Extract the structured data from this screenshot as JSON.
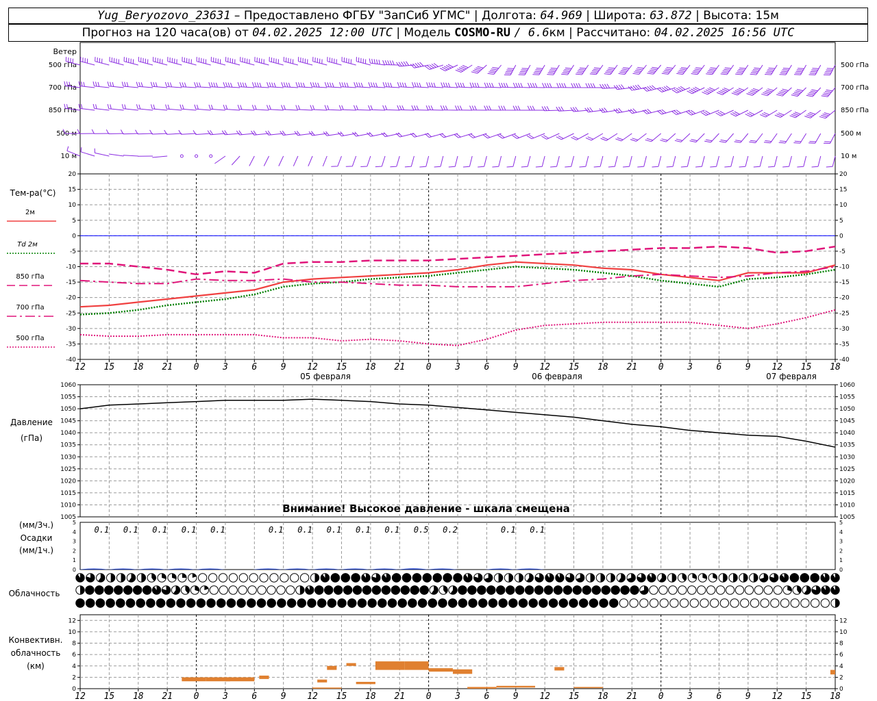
{
  "header": {
    "station": "Yug_Beryozovo_23631",
    "dash": "–",
    "provider": "Предоставлено ФГБУ \"ЗапСиб УГМС\"",
    "lon_label": "Долгота:",
    "lon": "64.969",
    "lat_label": "Широта:",
    "lat": "63.872",
    "alt_label": "Высота:",
    "alt": "15м",
    "forecast_label": "Прогноз на 120 часа(ов) от",
    "forecast_from": "04.02.2025 12:00 UTC",
    "model_label": "Модель",
    "model": "COSMO-RU",
    "resolution": "/ 6.6",
    "resolution_unit": "км",
    "calc_label": "Рассчитано:",
    "calc_time": "04.02.2025 16:56 UTC",
    "sep": "|"
  },
  "colors": {
    "wind": "#8a2be2",
    "t2m": "#f04040",
    "td": "#008000",
    "t850": "#e0157a",
    "t700": "#e0157a",
    "t500": "#e0157a",
    "zero_line": "#0000ff",
    "pressure": "#000000",
    "precip": "#2040c0",
    "convective": "#e08030",
    "grid": "#999999"
  },
  "axis": {
    "hour_ticks": [
      "12",
      "15",
      "18",
      "21",
      "0",
      "3",
      "6",
      "9",
      "12",
      "15",
      "18",
      "21",
      "0",
      "3",
      "6",
      "9",
      "12",
      "15",
      "18",
      "21",
      "0",
      "3",
      "6",
      "9",
      "12",
      "15",
      "18"
    ],
    "dates": [
      "05 февраля",
      "06 февраля",
      "07 февраля"
    ]
  },
  "wind_panel": {
    "title": "Ветер",
    "levels": [
      "500 гПа",
      "700 гПа",
      "850 гПа",
      "500 м",
      "10  м"
    ]
  },
  "temp_panel": {
    "title": "Тем-ра(°C)",
    "legend": [
      {
        "label": "2м",
        "style": "solid",
        "color_key": "t2m"
      },
      {
        "label": "Td  2м",
        "style": "dotted",
        "color_key": "td"
      },
      {
        "label": "850 гПа",
        "style": "dash",
        "color_key": "t850"
      },
      {
        "label": "700 гПа",
        "style": "dashdot",
        "color_key": "t700"
      },
      {
        "label": "500 гПа",
        "style": "dotted",
        "color_key": "t500"
      }
    ]
  },
  "pressure_panel": {
    "title": "Давление",
    "unit": "(гПа)",
    "warning": "Внимание! Высокое давление - шкала смещена"
  },
  "precip_panel": {
    "unit_3h": "(мм/3ч.)",
    "title": "Осадки",
    "unit_1h": "(мм/1ч.)",
    "labels": [
      {
        "hour": 3,
        "text": "0.1"
      },
      {
        "hour": 6,
        "text": "0.1"
      },
      {
        "hour": 9,
        "text": "0.1"
      },
      {
        "hour": 12,
        "text": "0.1"
      },
      {
        "hour": 15,
        "text": "0.1"
      },
      {
        "hour": 21,
        "text": "0.1"
      },
      {
        "hour": 24,
        "text": "0.1"
      },
      {
        "hour": 27,
        "text": "0.1"
      },
      {
        "hour": 30,
        "text": "0.1"
      },
      {
        "hour": 33,
        "text": "0.1"
      },
      {
        "hour": 36,
        "text": "0.5"
      },
      {
        "hour": 39,
        "text": "0.2"
      },
      {
        "hour": 45,
        "text": "0.1"
      },
      {
        "hour": 48,
        "text": "0.1"
      }
    ]
  },
  "cloud_panel": {
    "title": "Облачность"
  },
  "conv_panel": {
    "line1": "Конвективн.",
    "line2": "облачность",
    "unit": "(км)"
  },
  "chart_data": [
    {
      "type": "line",
      "name": "temperature",
      "x_unit": "hours from 04.02.2025 12:00 UTC",
      "xlim": [
        0,
        78
      ],
      "ylim": [
        -40,
        20
      ],
      "yticks": [
        -40,
        -35,
        -30,
        -25,
        -20,
        -15,
        -10,
        -5,
        0,
        5,
        10,
        15,
        20
      ],
      "grid": true,
      "series": [
        {
          "name": "2м",
          "x": [
            0,
            3,
            6,
            9,
            12,
            15,
            18,
            21,
            24,
            27,
            30,
            33,
            36,
            39,
            42,
            45,
            48,
            51,
            54,
            57,
            60,
            63,
            66,
            69,
            72,
            75,
            78
          ],
          "values": [
            -23,
            -22.5,
            -21.5,
            -20.5,
            -19.5,
            -18.5,
            -17.5,
            -15,
            -14,
            -13.5,
            -13,
            -12.5,
            -12,
            -11,
            -9.5,
            -8.5,
            -9,
            -9.5,
            -10.5,
            -11,
            -12.5,
            -13.5,
            -14.5,
            -12,
            -12,
            -12,
            -9.5
          ]
        },
        {
          "name": "Td  2м",
          "x": [
            0,
            3,
            6,
            9,
            12,
            15,
            18,
            21,
            24,
            27,
            30,
            33,
            36,
            39,
            42,
            45,
            48,
            51,
            54,
            57,
            60,
            63,
            66,
            69,
            72,
            75,
            78
          ],
          "values": [
            -25.5,
            -25,
            -24,
            -22.5,
            -21.5,
            -20.5,
            -19,
            -16.5,
            -15.5,
            -15,
            -14,
            -13.5,
            -13,
            -12,
            -11,
            -10,
            -10.5,
            -11,
            -12,
            -13,
            -14.5,
            -15.5,
            -16.5,
            -14,
            -13.5,
            -12.5,
            -11
          ]
        },
        {
          "name": "850 гПа",
          "x": [
            0,
            3,
            6,
            9,
            12,
            15,
            18,
            21,
            24,
            27,
            30,
            33,
            36,
            39,
            42,
            45,
            48,
            51,
            54,
            57,
            60,
            63,
            66,
            69,
            72,
            75,
            78
          ],
          "values": [
            -9,
            -9,
            -10,
            -11,
            -12.5,
            -11.5,
            -12,
            -9,
            -8.5,
            -8.5,
            -8,
            -8,
            -8,
            -7.5,
            -7,
            -6.5,
            -6,
            -5.5,
            -5,
            -4.5,
            -4,
            -4,
            -3.5,
            -4,
            -5.5,
            -5,
            -3.5
          ]
        },
        {
          "name": "700 гПа",
          "x": [
            0,
            3,
            6,
            9,
            12,
            15,
            18,
            21,
            24,
            27,
            30,
            33,
            36,
            39,
            42,
            45,
            48,
            51,
            54,
            57,
            60,
            63,
            66,
            69,
            72,
            75,
            78
          ],
          "values": [
            -14.5,
            -15,
            -15.5,
            -15.5,
            -14,
            -14.5,
            -14.5,
            -14,
            -15,
            -15,
            -15.5,
            -16,
            -16,
            -16.5,
            -16.5,
            -16.5,
            -15.5,
            -14.5,
            -14,
            -13,
            -12.5,
            -13,
            -13.5,
            -13,
            -12,
            -11.5,
            -10
          ]
        },
        {
          "name": "500 гПа",
          "x": [
            0,
            3,
            6,
            9,
            12,
            15,
            18,
            21,
            24,
            27,
            30,
            33,
            36,
            39,
            42,
            45,
            48,
            51,
            54,
            57,
            60,
            63,
            66,
            69,
            72,
            75,
            78
          ],
          "values": [
            -32,
            -32.5,
            -32.5,
            -32,
            -32,
            -32,
            -32,
            -33,
            -33,
            -34,
            -33.5,
            -34,
            -35,
            -35.5,
            -33.5,
            -30.5,
            -29,
            -28.5,
            -28,
            -28,
            -28,
            -28,
            -29,
            -30,
            -28.5,
            -26.5,
            -24
          ]
        }
      ]
    },
    {
      "type": "line",
      "name": "pressure",
      "x_unit": "hours from 04.02.2025 12:00 UTC",
      "xlim": [
        0,
        78
      ],
      "ylim": [
        1005,
        1060
      ],
      "yticks": [
        1005,
        1010,
        1015,
        1020,
        1025,
        1030,
        1035,
        1040,
        1045,
        1050,
        1055,
        1060
      ],
      "grid": true,
      "series": [
        {
          "name": "pressure",
          "x": [
            0,
            3,
            6,
            9,
            12,
            15,
            18,
            21,
            24,
            27,
            30,
            33,
            36,
            39,
            42,
            45,
            48,
            51,
            54,
            57,
            60,
            63,
            66,
            69,
            72,
            75,
            78
          ],
          "values": [
            1050,
            1051.5,
            1052,
            1052.5,
            1053,
            1053.5,
            1053.5,
            1053.5,
            1054,
            1053.5,
            1053,
            1052,
            1051.5,
            1050.5,
            1049.5,
            1048.5,
            1047.5,
            1046.5,
            1045,
            1043.5,
            1042.5,
            1041,
            1040,
            1039,
            1038.5,
            1036.5,
            1034
          ]
        }
      ]
    },
    {
      "type": "bar",
      "name": "precipitation",
      "x_unit": "hours from 04.02.2025 12:00 UTC",
      "ylim": [
        0,
        5
      ],
      "yticks": [
        0,
        1,
        2,
        3,
        4,
        5
      ],
      "x": [
        3,
        6,
        9,
        12,
        15,
        21,
        24,
        27,
        30,
        33,
        36,
        39,
        45,
        48
      ],
      "values": [
        0.1,
        0.1,
        0.1,
        0.1,
        0.1,
        0.1,
        0.1,
        0.1,
        0.1,
        0.1,
        0.5,
        0.2,
        0.1,
        0.1
      ]
    },
    {
      "type": "bar",
      "name": "convective cloud",
      "x_unit": "hours from 04.02.2025 12:00 UTC",
      "ylim": [
        0,
        13
      ],
      "yticks": [
        0,
        2,
        4,
        6,
        8,
        10,
        12
      ],
      "segments": [
        {
          "x0": 10.5,
          "x1": 13,
          "base": 1.3,
          "top": 2
        },
        {
          "x0": 13,
          "x1": 15.5,
          "base": 1.3,
          "top": 2
        },
        {
          "x0": 15,
          "x1": 18,
          "base": 1.3,
          "top": 2
        },
        {
          "x0": 18.5,
          "x1": 19.5,
          "base": 1.7,
          "top": 2.3
        },
        {
          "x0": 24,
          "x1": 27,
          "base": 0,
          "top": 0.2
        },
        {
          "x0": 24.5,
          "x1": 25.5,
          "base": 1.1,
          "top": 1.6
        },
        {
          "x0": 25.5,
          "x1": 26.5,
          "base": 3.3,
          "top": 4
        },
        {
          "x0": 27.5,
          "x1": 28.5,
          "base": 4,
          "top": 4.5
        },
        {
          "x0": 28.5,
          "x1": 30.5,
          "base": 0.8,
          "top": 1.2
        },
        {
          "x0": 30.5,
          "x1": 33.5,
          "base": 3.3,
          "top": 4.8
        },
        {
          "x0": 33.5,
          "x1": 36,
          "base": 3.3,
          "top": 4.8
        },
        {
          "x0": 36,
          "x1": 38.5,
          "base": 3,
          "top": 3.6
        },
        {
          "x0": 38.5,
          "x1": 40.5,
          "base": 2.6,
          "top": 3.4
        },
        {
          "x0": 40,
          "x1": 43,
          "base": 0,
          "top": 0.3
        },
        {
          "x0": 43,
          "x1": 47,
          "base": 0.2,
          "top": 0.5
        },
        {
          "x0": 49,
          "x1": 50,
          "base": 3.2,
          "top": 3.8
        },
        {
          "x0": 51,
          "x1": 54,
          "base": 0.1,
          "top": 0.3
        },
        {
          "x0": 77.5,
          "x1": 78,
          "base": 2.5,
          "top": 3.3
        }
      ]
    },
    {
      "type": "table",
      "name": "cloud cover (fraction, 3 rows)",
      "x_step_hours": 1.5,
      "rows": {
        "low": [
          0.9,
          0.8,
          0.6,
          0.5,
          0.5,
          0.6,
          0.5,
          0.4,
          0.3,
          0.3,
          0.25,
          0.2,
          0,
          0,
          0,
          0,
          0,
          0,
          0,
          0,
          0,
          0,
          0,
          0.5,
          0.9,
          1,
          1,
          1,
          0.9,
          0.8,
          0.9,
          1,
          1,
          1,
          1,
          1,
          1,
          1,
          0.9,
          0.8,
          0.7,
          0.5,
          0.5,
          0.5,
          0.6,
          0.8,
          0.9,
          0.9,
          0.8,
          0.7,
          0.5,
          0.5,
          0.5,
          0.6,
          0.7,
          0.8,
          0.9,
          0.6,
          0.5,
          0.4,
          0.3,
          0.3,
          0.3,
          0.5,
          0.5,
          0.5,
          0.5,
          0.7,
          0.8,
          0.9,
          1,
          1,
          1,
          0.9,
          0.9
        ],
        "mid": [
          0.5,
          1,
          1,
          1,
          1,
          1,
          1,
          1,
          0.9,
          0.8,
          0.6,
          0.4,
          0.3,
          0.2,
          0,
          0,
          0,
          0,
          0,
          0,
          0,
          0,
          0,
          0.5,
          0.9,
          1,
          1,
          1,
          1,
          1,
          1,
          1,
          1,
          1,
          1,
          1,
          1,
          0.6,
          0.4,
          0.6,
          1,
          1,
          1,
          1,
          1,
          1,
          1,
          1,
          1,
          1,
          1,
          1,
          1,
          1,
          1,
          1,
          1,
          1,
          1,
          0.7,
          0,
          0,
          0,
          0,
          0,
          0,
          0,
          0,
          0,
          0,
          0,
          0,
          0,
          0,
          0.3,
          0.4,
          0.6,
          0.8,
          0.9,
          0.9
        ],
        "high": [
          1,
          1,
          1,
          1,
          1,
          1,
          1,
          1,
          1,
          1,
          1,
          1,
          1,
          1,
          1,
          1,
          1,
          1,
          1,
          1,
          1,
          1,
          1,
          1,
          1,
          1,
          1,
          1,
          1,
          1,
          1,
          1,
          1,
          1,
          1,
          1,
          1,
          1,
          1,
          1,
          1,
          1,
          1,
          1,
          1,
          1,
          1,
          1,
          1,
          1,
          1,
          1,
          1,
          1,
          0,
          0,
          0,
          0,
          0,
          0,
          0,
          0,
          0,
          0,
          0,
          0,
          0,
          0,
          0,
          0,
          0,
          0,
          0,
          0,
          0,
          0.5
        ]
      }
    },
    {
      "type": "scatter",
      "name": "wind",
      "x_step_hours": 1.5,
      "levels": [
        "500 гПа",
        "700 гПа",
        "850 гПа",
        "500 м",
        "10  м"
      ],
      "direction_deg_by_level": [
        [
          [
            0,
            290
          ],
          [
            9,
            290
          ],
          [
            30,
            290
          ],
          [
            45,
            200
          ],
          [
            60,
            210
          ],
          [
            78,
            200
          ]
        ],
        [
          [
            0,
            280
          ],
          [
            12,
            275
          ],
          [
            36,
            275
          ],
          [
            54,
            270
          ],
          [
            66,
            230
          ],
          [
            78,
            210
          ]
        ],
        [
          [
            0,
            280
          ],
          [
            18,
            275
          ],
          [
            48,
            270
          ],
          [
            60,
            250
          ],
          [
            78,
            220
          ]
        ],
        [
          [
            0,
            270
          ],
          [
            24,
            260
          ],
          [
            48,
            240
          ],
          [
            60,
            220
          ],
          [
            78,
            200
          ]
        ],
        [
          [
            0,
            300
          ],
          [
            12,
            250
          ],
          [
            18,
            200
          ],
          [
            36,
            190
          ],
          [
            60,
            190
          ],
          [
            78,
            190
          ]
        ]
      ],
      "speed_ms_by_level": [
        [
          [
            0,
            22
          ],
          [
            30,
            26
          ],
          [
            54,
            30
          ],
          [
            78,
            32
          ]
        ],
        [
          [
            0,
            15
          ],
          [
            30,
            20
          ],
          [
            54,
            22
          ],
          [
            78,
            25
          ]
        ],
        [
          [
            0,
            10
          ],
          [
            30,
            12
          ],
          [
            54,
            15
          ],
          [
            78,
            18
          ]
        ],
        [
          [
            0,
            7
          ],
          [
            30,
            8
          ],
          [
            54,
            10
          ],
          [
            78,
            12
          ]
        ],
        [
          [
            0,
            3
          ],
          [
            12,
            1
          ],
          [
            18,
            2
          ],
          [
            36,
            3
          ],
          [
            60,
            4
          ],
          [
            78,
            4
          ]
        ]
      ]
    }
  ]
}
